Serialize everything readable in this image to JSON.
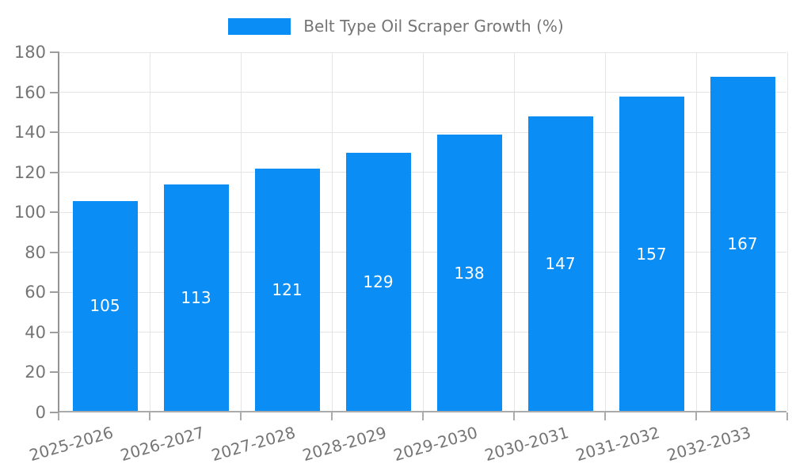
{
  "legend": {
    "label": "Belt Type Oil Scraper Growth (%)",
    "swatch_color": "#0a8df4"
  },
  "chart_data": {
    "type": "bar",
    "title": "Belt Type Oil Scraper Growth (%)",
    "categories": [
      "2025-2026",
      "2026-2027",
      "2027-2028",
      "2028-2029",
      "2029-2030",
      "2030-2031",
      "2031-2032",
      "2032-2033"
    ],
    "values": [
      105,
      113,
      121,
      129,
      138,
      147,
      157,
      167
    ],
    "xlabel": "",
    "ylabel": "",
    "ylim": [
      0,
      180
    ],
    "yticks": [
      0,
      20,
      40,
      60,
      80,
      100,
      120,
      140,
      160,
      180
    ],
    "grid": true,
    "legend_position": "top-center",
    "value_labels": "centered-inside-bars",
    "x_label_rotation_deg": -16,
    "colors": {
      "bar": "#0a8df4",
      "value_label": "#ffffff",
      "axis_text": "#757575",
      "gridline": "#e5e5e5",
      "axis_line": "#9e9e9e"
    }
  }
}
